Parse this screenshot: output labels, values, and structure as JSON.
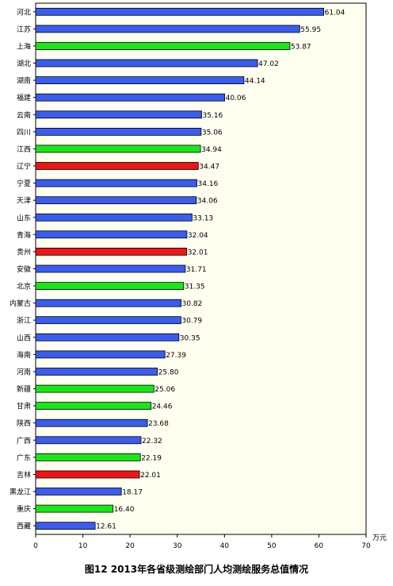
{
  "caption": "图12  2013年各省级测绘部门人均测绘服务总值情况",
  "chart_data": {
    "type": "bar",
    "orientation": "horizontal",
    "title": "图12  2013年各省级测绘部门人均测绘服务总值情况",
    "unit_label": "万元",
    "xlim": [
      0,
      70
    ],
    "xticks": [
      0,
      10,
      20,
      30,
      40,
      50,
      60,
      70
    ],
    "grid": false,
    "plot_background": "#FFFFF0",
    "colors": {
      "blue": "#3A5CF0",
      "green": "#19E619",
      "red": "#F01414"
    },
    "categories": [
      "河北",
      "江苏",
      "上海",
      "湖北",
      "湖南",
      "福建",
      "云南",
      "四川",
      "江西",
      "辽宁",
      "宁夏",
      "天津",
      "山东",
      "青海",
      "贵州",
      "安徽",
      "北京",
      "内蒙古",
      "浙江",
      "山西",
      "海南",
      "河南",
      "新疆",
      "甘肃",
      "陕西",
      "广西",
      "广东",
      "吉林",
      "黑龙江",
      "重庆",
      "西藏"
    ],
    "values": [
      61.04,
      55.95,
      53.87,
      47.02,
      44.14,
      40.06,
      35.16,
      35.06,
      34.94,
      34.47,
      34.16,
      34.06,
      33.13,
      32.04,
      32.01,
      31.71,
      31.35,
      30.82,
      30.79,
      30.35,
      27.39,
      25.8,
      25.06,
      24.46,
      23.68,
      22.32,
      22.19,
      22.01,
      18.17,
      16.4,
      12.61
    ],
    "labels": [
      "61.04",
      "55.95",
      "53.87",
      "47.02",
      "44.14",
      "40.06",
      "35.16",
      "35.06",
      "34.94",
      "34.47",
      "34.16",
      "34.06",
      "33.13",
      "32.04",
      "32.01",
      "31.71",
      "31.35",
      "30.82",
      "30.79",
      "30.35",
      "27.39",
      "25.80",
      "25.06",
      "24.46",
      "23.68",
      "22.32",
      "22.19",
      "22.01",
      "18.17",
      "16.40",
      "12.61"
    ],
    "bar_colors": [
      "blue",
      "blue",
      "green",
      "blue",
      "blue",
      "blue",
      "blue",
      "blue",
      "green",
      "red",
      "blue",
      "blue",
      "blue",
      "blue",
      "red",
      "blue",
      "green",
      "blue",
      "blue",
      "blue",
      "blue",
      "blue",
      "green",
      "green",
      "blue",
      "blue",
      "green",
      "red",
      "blue",
      "green",
      "blue"
    ]
  }
}
